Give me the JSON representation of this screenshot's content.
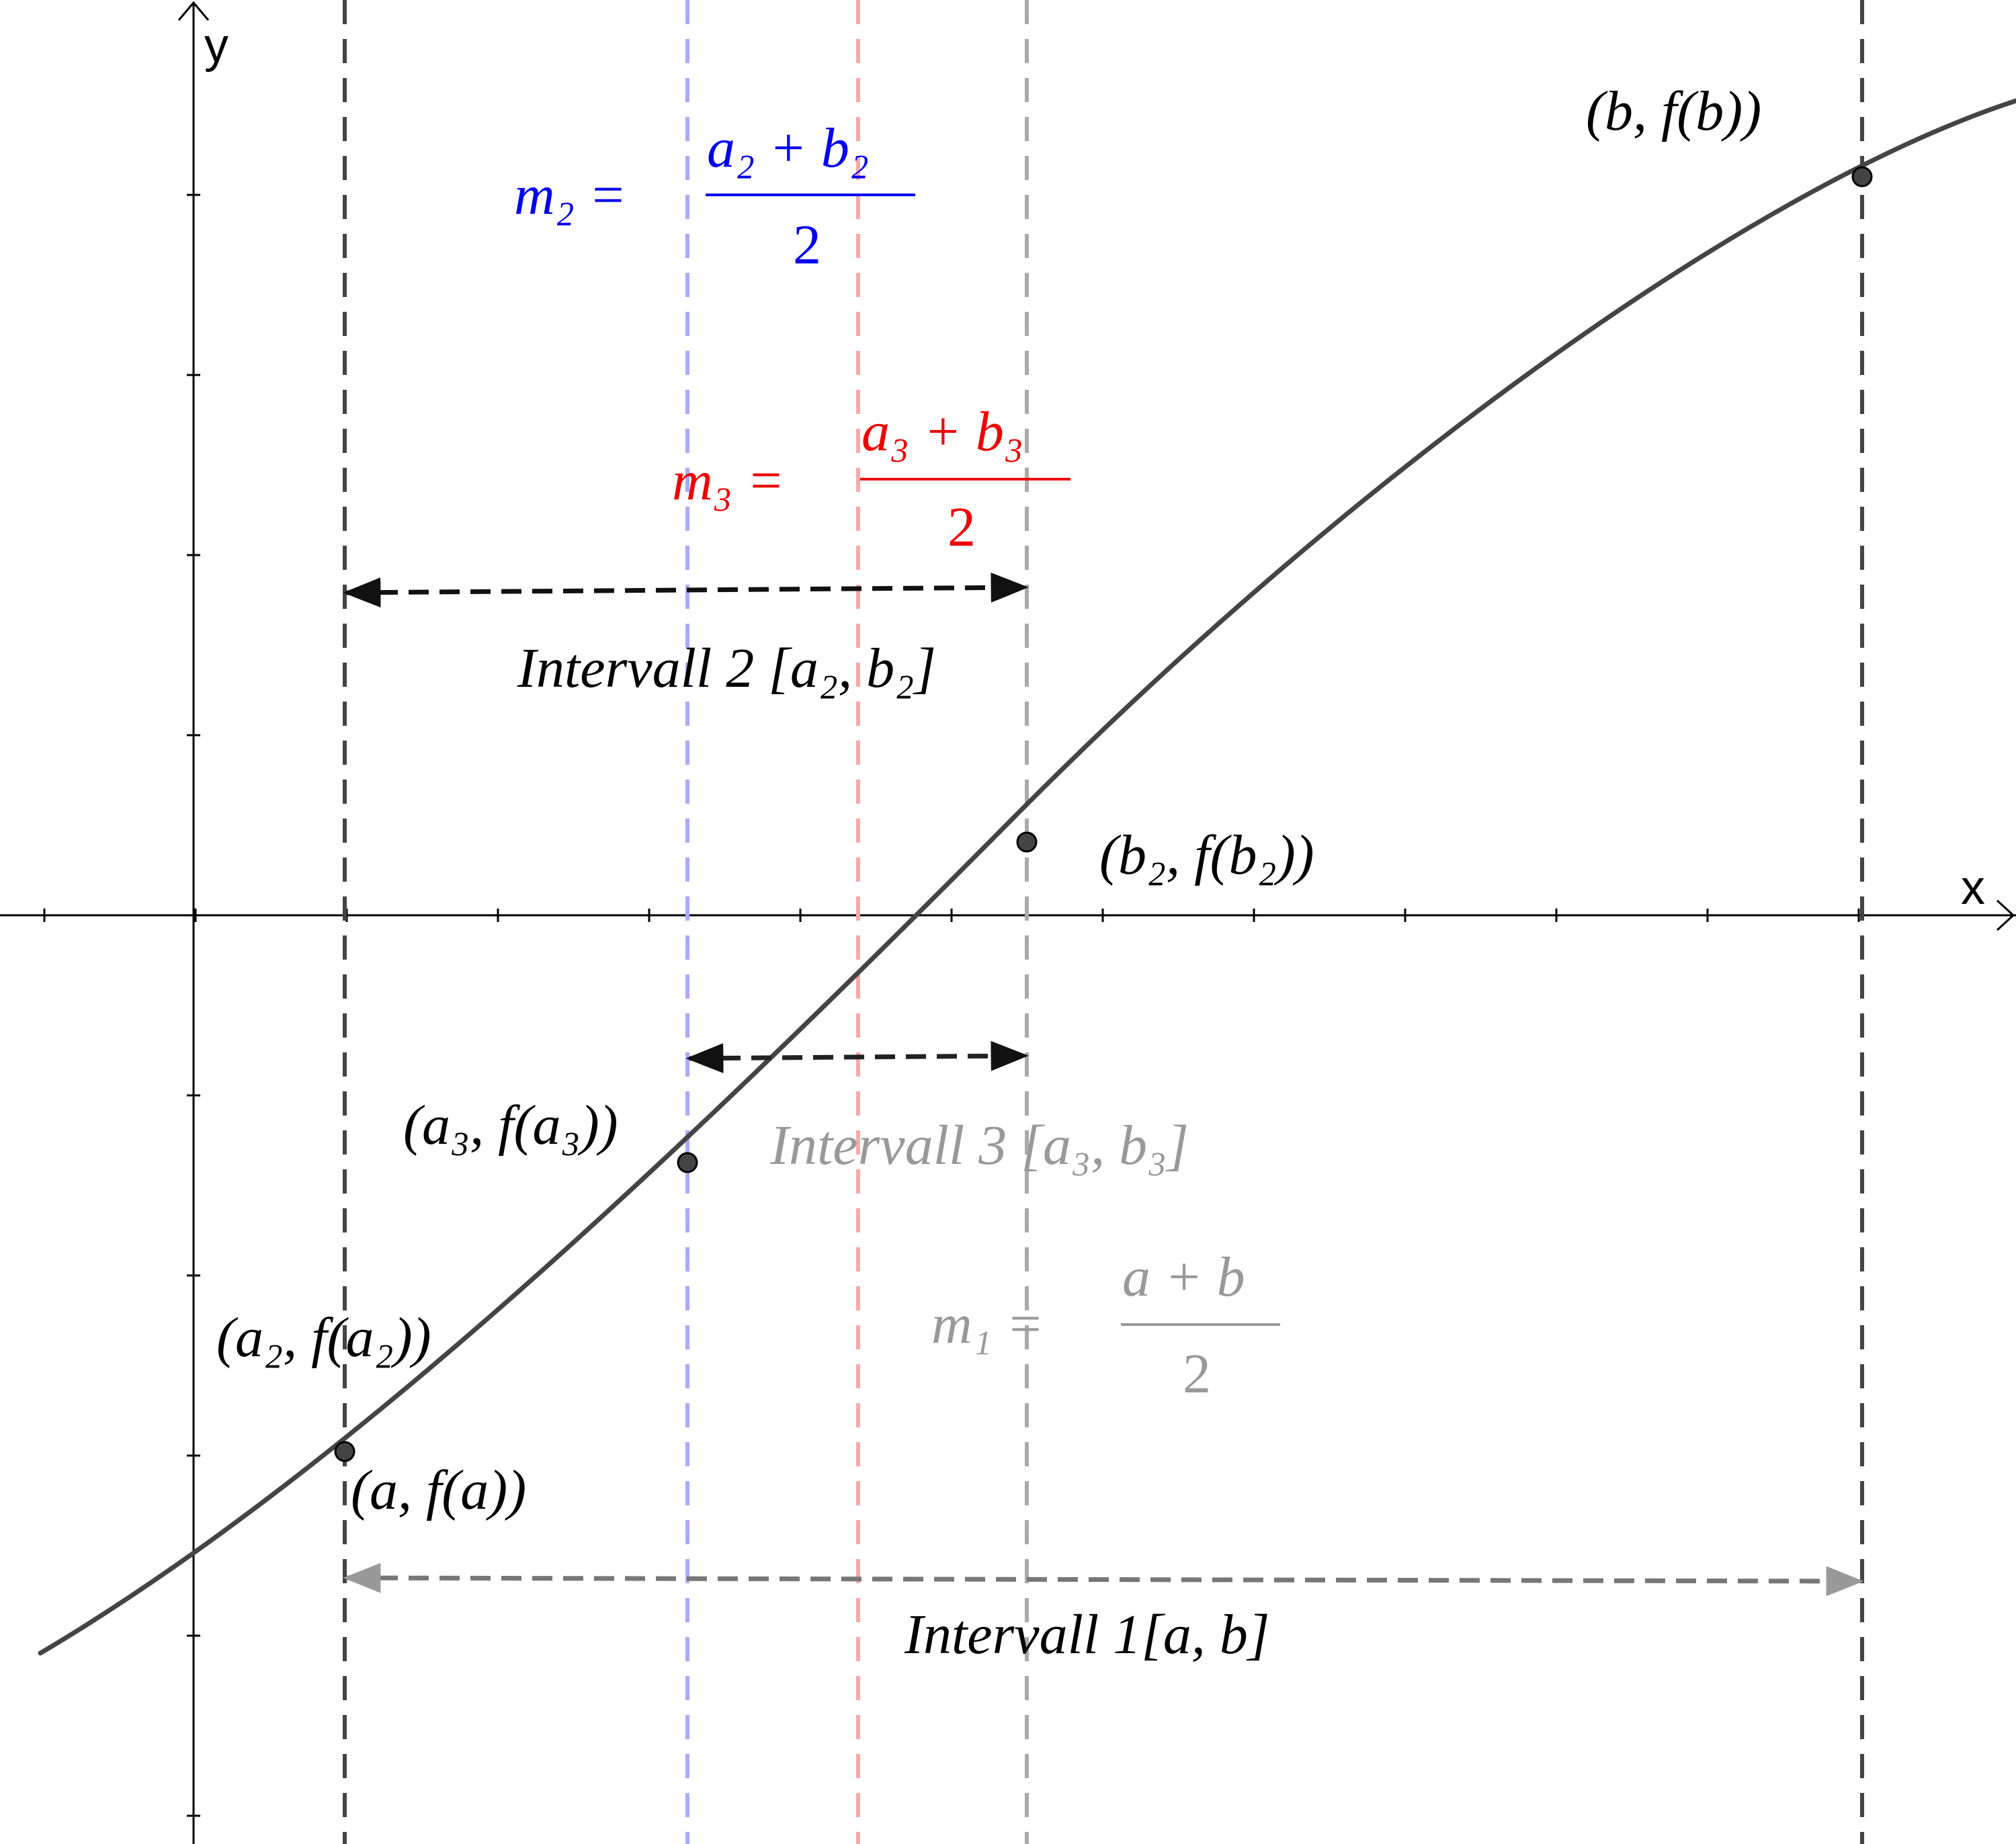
{
  "axes": {
    "x_label": "x",
    "y_label": "y"
  },
  "points": {
    "b": "(b, f(b))",
    "b2": "(b₂, f(b₂))",
    "a3": "(a₃, f(a₃))",
    "a2": "(a₂, f(a₂))",
    "a": "(a, f(a))"
  },
  "formulas": {
    "m2": {
      "lhs": "m₂ =",
      "num": "a₂ + b₂",
      "den": "2"
    },
    "m3": {
      "lhs": "m₃ =",
      "num": "a₃ + b₃",
      "den": "2"
    },
    "m1": {
      "lhs": "m₁ =",
      "num": "a + b",
      "den": "2"
    }
  },
  "intervals": {
    "i2": "Intervall 2 [a₂, b₂]",
    "i3": "Intervall 3 [a₃, b₃]",
    "i1": "Intervall 1[a, b]"
  },
  "colors": {
    "curve": "#444444",
    "black": "#000000",
    "blue": "#0000ee",
    "red": "#ee0000",
    "gray": "#999999",
    "blue_line": "#aaaaff",
    "red_line": "#f5aaaa",
    "gray_line": "#aaaaaa",
    "dark_line": "#444444"
  }
}
